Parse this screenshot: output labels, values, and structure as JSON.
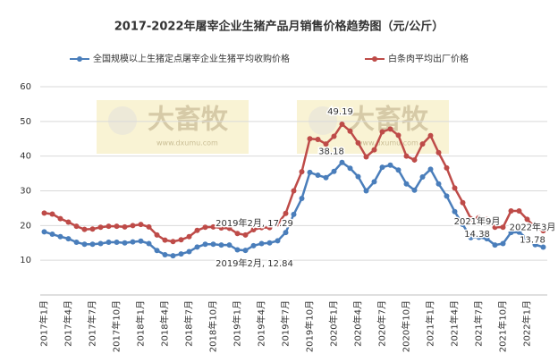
{
  "chart_data": {
    "type": "line",
    "title": "2017-2022年屠宰企业生猪产品月销售价格趋势图（元/公斤）",
    "watermark": "大畜牧",
    "watermark_url": "www.dxumu.com",
    "categories": [
      "2017年1月",
      null,
      null,
      "2017年4月",
      null,
      null,
      "2017年7月",
      null,
      null,
      "2017年10月",
      null,
      null,
      "2018年1月",
      null,
      null,
      "2018年4月",
      null,
      null,
      "2018年7月",
      null,
      null,
      "2018年10月",
      null,
      null,
      "2019年1月",
      null,
      null,
      "2019年4月",
      null,
      null,
      "2019年7月",
      null,
      null,
      "2019年10月",
      null,
      null,
      "2020年1月",
      null,
      null,
      "2020年4月",
      null,
      null,
      "2020年7月",
      null,
      null,
      "2020年10月",
      null,
      null,
      "2021年1月",
      null,
      null,
      "2021年4月",
      null,
      null,
      "2021年7月",
      null,
      null,
      "2021年10月",
      null,
      null,
      "2022年1月",
      null,
      null
    ],
    "series": [
      {
        "name": "全国规模以上生猪定点屠宰企业生猪平均收购价格",
        "color": "#4a7ebb",
        "values": [
          18.2,
          17.5,
          16.8,
          16.2,
          15.2,
          14.6,
          14.6,
          14.8,
          15.2,
          15.2,
          15.0,
          15.3,
          15.5,
          14.8,
          12.8,
          11.6,
          11.3,
          11.8,
          12.5,
          13.8,
          14.6,
          14.6,
          14.4,
          14.4,
          13.0,
          12.84,
          14.2,
          14.8,
          15.0,
          15.6,
          18.0,
          23.2,
          27.8,
          35.3,
          34.5,
          33.8,
          35.6,
          38.18,
          36.5,
          34.1,
          30.0,
          32.6,
          36.8,
          37.4,
          36.0,
          32.0,
          30.2,
          34.0,
          36.2,
          32.0,
          28.5,
          24.0,
          20.3,
          16.5,
          16.6,
          16.2,
          14.38,
          14.8,
          18.0,
          18.1,
          16.2,
          14.5,
          13.78
        ]
      },
      {
        "name": "白条肉平均出厂价格",
        "color": "#be4b48",
        "values": [
          23.6,
          23.3,
          22.0,
          21.0,
          19.8,
          18.9,
          19.0,
          19.5,
          19.8,
          19.8,
          19.6,
          20.0,
          20.3,
          19.6,
          17.3,
          15.8,
          15.4,
          15.9,
          16.8,
          18.6,
          19.5,
          19.6,
          19.3,
          19.2,
          17.7,
          17.29,
          18.8,
          19.4,
          19.4,
          20.5,
          23.5,
          30.0,
          35.5,
          45.0,
          44.8,
          43.5,
          45.7,
          49.19,
          47.2,
          43.8,
          39.8,
          41.8,
          47.0,
          47.8,
          46.0,
          40.0,
          38.9,
          43.5,
          45.9,
          41.0,
          36.6,
          30.8,
          26.6,
          22.0,
          22.3,
          21.8,
          19.5,
          19.5,
          24.2,
          24.2,
          21.8,
          19.5,
          18.5
        ]
      }
    ],
    "annotations": [
      {
        "lines": [
          "2019年2月, 17.29"
        ]
      },
      {
        "lines": [
          "2019年2月, 12.84"
        ]
      },
      {
        "lines": [
          "49.19"
        ]
      },
      {
        "lines": [
          "38.18"
        ]
      },
      {
        "lines": [
          "2021年9月",
          "14.38"
        ]
      },
      {
        "lines": [
          "2022年3月",
          "13.78"
        ]
      }
    ],
    "ylim": [
      0,
      60
    ],
    "yticks": [
      10,
      20,
      30,
      40,
      50,
      60
    ],
    "grid": true
  }
}
